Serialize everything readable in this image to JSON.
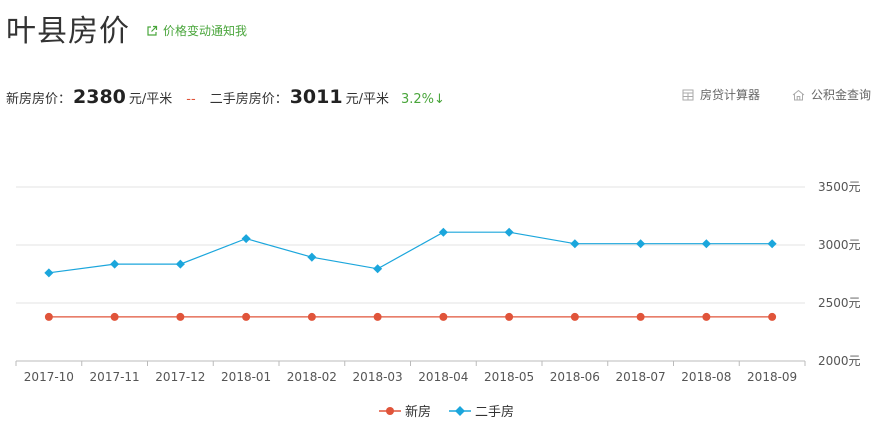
{
  "header": {
    "title": "叶县房价",
    "notify_label": "价格变动通知我"
  },
  "summary": {
    "new_label": "新房房价：",
    "new_value": "2380",
    "new_unit": "元/平米",
    "separator": "--",
    "second_label": "二手房房价：",
    "second_value": "3011",
    "second_unit": "元/平米",
    "change": "3.2%↓"
  },
  "tools": {
    "calculator": "房贷计算器",
    "fund_query": "公积金查询"
  },
  "colors": {
    "new_series": "#e0543a",
    "second_series": "#1ba6dc",
    "accent_green": "#4aa63c"
  },
  "chart_data": {
    "type": "line",
    "x": [
      "2017-10",
      "2017-11",
      "2017-12",
      "2018-01",
      "2018-02",
      "2018-03",
      "2018-04",
      "2018-05",
      "2018-06",
      "2018-07",
      "2018-08",
      "2018-09"
    ],
    "series": [
      {
        "name": "新房",
        "values": [
          2380,
          2380,
          2380,
          2380,
          2380,
          2380,
          2380,
          2380,
          2380,
          2380,
          2380,
          2380
        ]
      },
      {
        "name": "二手房",
        "values": [
          2760,
          2835,
          2835,
          3055,
          2895,
          2795,
          3110,
          3110,
          3011,
          3011,
          3011,
          3011
        ]
      }
    ],
    "yticks": [
      "2000元",
      "2500元",
      "3000元",
      "3500元"
    ],
    "ytick_values": [
      2000,
      2500,
      3000,
      3500
    ],
    "ylim": [
      2000,
      3500
    ],
    "grid": true,
    "legend_position": "bottom-center"
  }
}
